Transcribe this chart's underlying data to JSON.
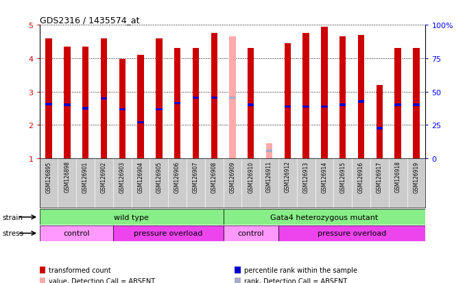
{
  "title": "GDS2316 / 1435574_at",
  "samples": [
    "GSM126895",
    "GSM126898",
    "GSM126901",
    "GSM126902",
    "GSM126903",
    "GSM126904",
    "GSM126905",
    "GSM126906",
    "GSM126907",
    "GSM126908",
    "GSM126909",
    "GSM126910",
    "GSM126911",
    "GSM126912",
    "GSM126913",
    "GSM126914",
    "GSM126915",
    "GSM126916",
    "GSM126917",
    "GSM126918",
    "GSM126919"
  ],
  "bar_tops": [
    4.6,
    4.35,
    4.35,
    4.6,
    3.97,
    4.1,
    4.6,
    4.3,
    4.3,
    4.75,
    4.65,
    4.3,
    1.45,
    4.45,
    4.75,
    4.95,
    4.65,
    4.7,
    3.2,
    4.3,
    4.3
  ],
  "blue_positions": [
    2.62,
    2.6,
    2.5,
    2.8,
    2.47,
    2.07,
    2.47,
    2.65,
    2.82,
    2.82,
    2.82,
    2.6,
    1.22,
    2.55,
    2.55,
    2.55,
    2.6,
    2.7,
    1.9,
    2.6,
    2.6
  ],
  "absent": [
    false,
    false,
    false,
    false,
    false,
    false,
    false,
    false,
    false,
    false,
    true,
    false,
    true,
    false,
    false,
    false,
    false,
    false,
    false,
    false,
    false
  ],
  "bar_bottom": 1.0,
  "ylim": [
    1.0,
    5.0
  ],
  "y2lim": [
    0,
    100
  ],
  "y2ticks": [
    0,
    25,
    50,
    75,
    100
  ],
  "y2labels": [
    "0",
    "25",
    "50",
    "75",
    "100%"
  ],
  "yticks": [
    1,
    2,
    3,
    4,
    5
  ],
  "red_color": "#CC0000",
  "pink_color": "#FFAAAA",
  "blue_color": "#0000CC",
  "light_blue_color": "#AAAACC",
  "bar_width": 0.35,
  "bg_color": "#FFFFFF",
  "tick_bg_color": "#CCCCCC",
  "green_color": "#88EE88",
  "pink_stress_light": "#FF99FF",
  "pink_stress_dark": "#EE44EE",
  "strain_split": 10,
  "stress_splits": [
    4,
    10,
    13
  ],
  "legend_labels": [
    "transformed count",
    "percentile rank within the sample",
    "value, Detection Call = ABSENT",
    "rank, Detection Call = ABSENT"
  ],
  "legend_colors": [
    "#CC0000",
    "#0000CC",
    "#FFAAAA",
    "#AAAACC"
  ]
}
